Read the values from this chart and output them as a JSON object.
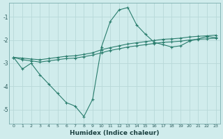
{
  "x": [
    0,
    1,
    2,
    3,
    4,
    5,
    6,
    7,
    8,
    9,
    10,
    11,
    12,
    13,
    14,
    15,
    16,
    17,
    18,
    19,
    20,
    21,
    22,
    23
  ],
  "line1": [
    -2.75,
    -3.25,
    -3.0,
    -3.5,
    -3.9,
    -4.3,
    -4.7,
    -4.85,
    -5.3,
    -4.55,
    -2.3,
    -1.2,
    -0.7,
    -0.6,
    -1.35,
    -1.75,
    -2.1,
    -2.2,
    -2.3,
    -2.25,
    -2.05,
    -1.95,
    -1.85,
    -1.9
  ],
  "line2": [
    -2.75,
    -2.85,
    -2.9,
    -2.95,
    -2.9,
    -2.85,
    -2.8,
    -2.78,
    -2.72,
    -2.65,
    -2.55,
    -2.45,
    -2.38,
    -2.3,
    -2.25,
    -2.2,
    -2.15,
    -2.1,
    -2.08,
    -2.05,
    -2.0,
    -1.97,
    -1.95,
    -1.92
  ],
  "line3": [
    -2.75,
    -2.78,
    -2.82,
    -2.85,
    -2.8,
    -2.75,
    -2.7,
    -2.68,
    -2.62,
    -2.55,
    -2.42,
    -2.33,
    -2.25,
    -2.17,
    -2.12,
    -2.07,
    -2.02,
    -1.97,
    -1.95,
    -1.92,
    -1.87,
    -1.84,
    -1.82,
    -1.79
  ],
  "line_color": "#2a7d6d",
  "bg_color": "#d0ecec",
  "grid_color": "#b8d8d8",
  "xlabel": "Humidex (Indice chaleur)",
  "xlim": [
    -0.5,
    23.5
  ],
  "ylim": [
    -5.6,
    -0.4
  ],
  "yticks": [
    -5,
    -4,
    -3,
    -2,
    -1
  ],
  "xticks": [
    0,
    1,
    2,
    3,
    4,
    5,
    6,
    7,
    8,
    9,
    10,
    11,
    12,
    13,
    14,
    15,
    16,
    17,
    18,
    19,
    20,
    21,
    22,
    23
  ]
}
